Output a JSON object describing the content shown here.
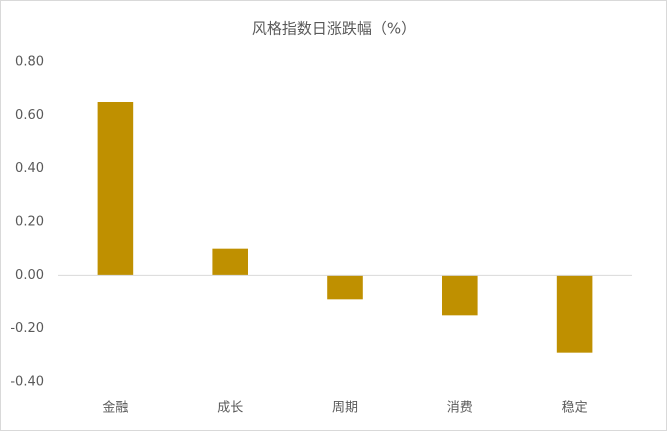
{
  "chart_data": {
    "type": "bar",
    "title": "风格指数日涨跌幅（%）",
    "categories": [
      "金融",
      "成长",
      "周期",
      "消费",
      "稳定"
    ],
    "values": [
      0.65,
      0.1,
      -0.09,
      -0.15,
      -0.29
    ],
    "color": "#bf9000",
    "ylim": [
      -0.4,
      0.8
    ],
    "yticks": [
      {
        "value": -0.4,
        "label": "-0.40"
      },
      {
        "value": -0.2,
        "label": "-0.20"
      },
      {
        "value": 0,
        "label": "0.00"
      },
      {
        "value": 0.2,
        "label": "0.20"
      },
      {
        "value": 0.4,
        "label": "0.40"
      },
      {
        "value": 0.6,
        "label": "0.60"
      },
      {
        "value": 0.8,
        "label": "0.80"
      }
    ],
    "grid": false
  }
}
